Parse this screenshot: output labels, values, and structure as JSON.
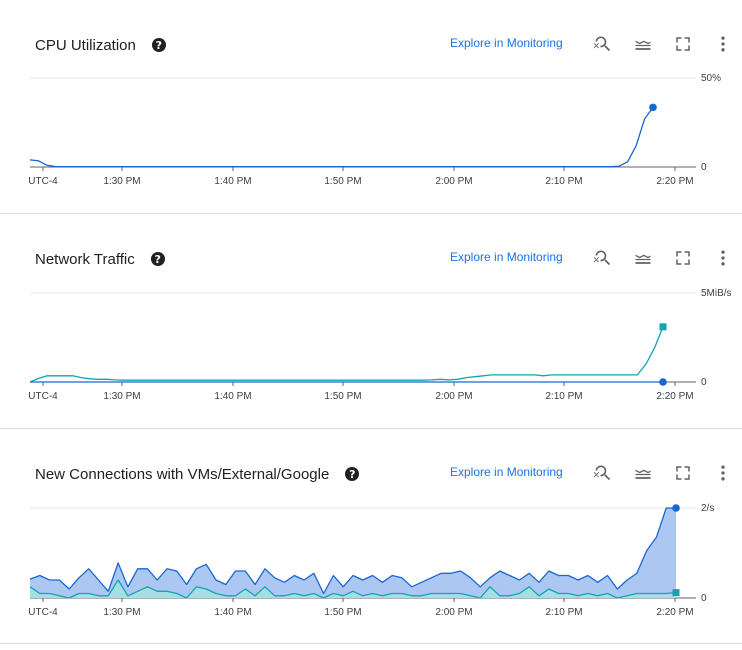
{
  "explore_label": "Explore in Monitoring",
  "help_glyph": "?",
  "icons": [
    "zoom-reset-icon",
    "legend-toggle-icon",
    "fullscreen-icon",
    "more-vert-icon"
  ],
  "colors": {
    "blue": "#1967d2",
    "blue_fill": "#a8c4f0",
    "teal": "#12a4af",
    "teal_fill": "#a6dfe3",
    "link": "#1a73e8"
  },
  "x_ticks": [
    "UTC-4",
    "1:30 PM",
    "1:40 PM",
    "1:50 PM",
    "2:00 PM",
    "2:10 PM",
    "2:20 PM"
  ],
  "panels": [
    {
      "title": "CPU Utilization",
      "y_max_label": "50%",
      "y_zero_label": "0"
    },
    {
      "title": "Network Traffic",
      "y_max_label": "5MiB/s",
      "y_zero_label": "0"
    },
    {
      "title": "New Connections with VMs/External/Google",
      "y_max_label": "2/s",
      "y_zero_label": "0"
    }
  ],
  "chart_data": [
    {
      "type": "line",
      "title": "CPU Utilization",
      "x_ticks": [
        "UTC-4",
        "1:30 PM",
        "1:40 PM",
        "1:50 PM",
        "2:00 PM",
        "2:10 PM",
        "2:20 PM"
      ],
      "ylim": [
        0,
        50
      ],
      "unit": "%",
      "series": [
        {
          "color": "#1967d2",
          "values": [
            4,
            3.5,
            1,
            0.3,
            0.2,
            0.2,
            0.2,
            0.2,
            0.2,
            0.2,
            0.2,
            0.2,
            0.2,
            0.2,
            0.2,
            0.2,
            0.2,
            0.2,
            0.2,
            0.2,
            0.2,
            0.2,
            0.2,
            0.2,
            0.2,
            0.2,
            0.2,
            0.2,
            0.2,
            0.2,
            0.2,
            0.2,
            0.2,
            0.2,
            0.2,
            0.2,
            0.2,
            0.2,
            0.2,
            0.2,
            0.2,
            0.2,
            0.2,
            0.2,
            0.2,
            0.2,
            0.2,
            0.2,
            0.2,
            0.2,
            0.2,
            0.2,
            0.2,
            0.2,
            0.2,
            0.2,
            0.2,
            0.2,
            0.2,
            0.2,
            0.2,
            0.2,
            0.2,
            0.2,
            0.2,
            0.2,
            0.2,
            0.2,
            0.2,
            0.2,
            0.5,
            3,
            12,
            27,
            33.5
          ]
        }
      ]
    },
    {
      "type": "line",
      "title": "Network Traffic",
      "x_ticks": [
        "UTC-4",
        "1:30 PM",
        "1:40 PM",
        "1:50 PM",
        "2:00 PM",
        "2:10 PM",
        "2:20 PM"
      ],
      "ylim": [
        0,
        5
      ],
      "unit": "MiB/s",
      "series": [
        {
          "color": "#12a4af",
          "values": [
            0,
            0.2,
            0.35,
            0.35,
            0.35,
            0.35,
            0.25,
            0.18,
            0.15,
            0.15,
            0.12,
            0.1,
            0.1,
            0.1,
            0.1,
            0.1,
            0.1,
            0.1,
            0.1,
            0.1,
            0.1,
            0.1,
            0.1,
            0.1,
            0.1,
            0.1,
            0.1,
            0.1,
            0.1,
            0.1,
            0.1,
            0.1,
            0.1,
            0.1,
            0.1,
            0.1,
            0.1,
            0.1,
            0.1,
            0.1,
            0.1,
            0.1,
            0.1,
            0.1,
            0.1,
            0.1,
            0.1,
            0.12,
            0.15,
            0.12,
            0.15,
            0.25,
            0.3,
            0.35,
            0.4,
            0.4,
            0.4,
            0.4,
            0.4,
            0.4,
            0.35,
            0.4,
            0.4,
            0.4,
            0.4,
            0.4,
            0.4,
            0.4,
            0.4,
            0.4,
            0.4,
            0.4,
            1.0,
            1.9,
            3.1
          ]
        },
        {
          "color": "#1967d2",
          "values": [
            0,
            0,
            0,
            0,
            0,
            0,
            0,
            0,
            0,
            0,
            0,
            0,
            0,
            0,
            0,
            0,
            0,
            0,
            0,
            0,
            0,
            0,
            0,
            0,
            0,
            0,
            0,
            0,
            0,
            0,
            0,
            0,
            0,
            0,
            0,
            0,
            0,
            0,
            0,
            0,
            0,
            0,
            0,
            0,
            0,
            0,
            0,
            0,
            0,
            0,
            0,
            0,
            0,
            0,
            0,
            0,
            0,
            0,
            0,
            0,
            0,
            0,
            0,
            0,
            0,
            0,
            0,
            0,
            0,
            0,
            0,
            0,
            0
          ]
        }
      ]
    },
    {
      "type": "area",
      "title": "New Connections with VMs/External/Google",
      "x_ticks": [
        "UTC-4",
        "1:30 PM",
        "1:40 PM",
        "1:50 PM",
        "2:00 PM",
        "2:10 PM",
        "2:20 PM"
      ],
      "ylim": [
        0,
        2
      ],
      "unit": "/s",
      "series": [
        {
          "color": "#1967d2",
          "fill": "#a8c4f0",
          "values": [
            0.42,
            0.5,
            0.4,
            0.4,
            0.2,
            0.45,
            0.65,
            0.4,
            0.15,
            0.78,
            0.25,
            0.65,
            0.65,
            0.4,
            0.65,
            0.6,
            0.3,
            0.65,
            0.75,
            0.4,
            0.3,
            0.6,
            0.6,
            0.3,
            0.65,
            0.45,
            0.35,
            0.5,
            0.4,
            0.55,
            0.1,
            0.5,
            0.25,
            0.5,
            0.4,
            0.5,
            0.35,
            0.5,
            0.45,
            0.25,
            0.35,
            0.45,
            0.55,
            0.55,
            0.6,
            0.45,
            0.25,
            0.45,
            0.6,
            0.5,
            0.4,
            0.55,
            0.35,
            0.6,
            0.5,
            0.5,
            0.4,
            0.5,
            0.35,
            0.5,
            0.2,
            0.4,
            0.55,
            1.05,
            1.35,
            2.0,
            2.0
          ]
        },
        {
          "color": "#12a4af",
          "fill": "#a6dfe3",
          "values": [
            0.25,
            0.1,
            0.1,
            0.05,
            0,
            0.1,
            0.1,
            0.05,
            0.05,
            0.4,
            0.05,
            0.15,
            0.25,
            0.15,
            0.15,
            0.1,
            0,
            0.25,
            0.2,
            0.1,
            0.05,
            0.05,
            0.2,
            0.05,
            0.25,
            0.05,
            0.05,
            0.1,
            0.05,
            0.1,
            0,
            0.1,
            0.05,
            0.15,
            0.05,
            0.1,
            0.05,
            0.1,
            0.1,
            0.05,
            0.05,
            0.1,
            0.1,
            0.1,
            0.1,
            0.05,
            0,
            0.25,
            0.05,
            0.05,
            0.1,
            0.25,
            0.05,
            0.2,
            0.1,
            0.1,
            0.05,
            0.1,
            0.05,
            0.1,
            0,
            0.05,
            0.1,
            0.1,
            0.1,
            0.1,
            0.12
          ]
        }
      ]
    }
  ]
}
